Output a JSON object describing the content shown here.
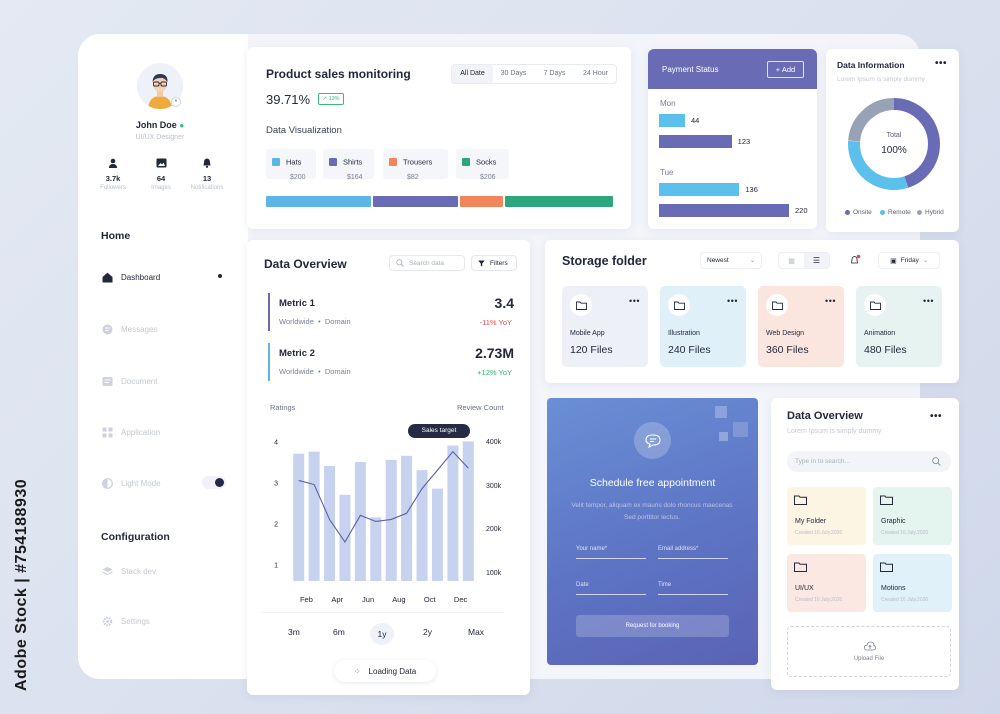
{
  "watermark": "Adobe Stock | #754188930",
  "sidebar": {
    "user": {
      "name": "John Doe",
      "role": "UI/UX Designer"
    },
    "stats": [
      {
        "icon": "person-icon",
        "value": "3.7k",
        "label": "Followers"
      },
      {
        "icon": "image-icon",
        "value": "64",
        "label": "Images"
      },
      {
        "icon": "bell-icon",
        "value": "13",
        "label": "Notifications"
      }
    ],
    "home_heading": "Home",
    "items": [
      {
        "label": "Dashboard",
        "icon": "home-icon",
        "active": true
      },
      {
        "label": "Messages",
        "icon": "message-icon",
        "active": false
      },
      {
        "label": "Document",
        "icon": "document-icon",
        "active": false
      },
      {
        "label": "Application",
        "icon": "grid-icon",
        "active": false
      },
      {
        "label": "Light Mode",
        "icon": "contrast-icon",
        "active": false
      }
    ],
    "config_heading": "Configuration",
    "config_items": [
      {
        "label": "Stack dev",
        "icon": "stack-icon"
      },
      {
        "label": "Settings",
        "icon": "gear-icon"
      }
    ]
  },
  "sales": {
    "title": "Product sales monitoring",
    "tabs": [
      "All Date",
      "30 Days",
      "7 Days",
      "24 Hour"
    ],
    "selected_tab": "All Date",
    "percent": "39.71%",
    "badge": "13%",
    "section": "Data Visualization",
    "items": [
      {
        "name": "Hats",
        "price": "$200",
        "color": "#5bb6e6"
      },
      {
        "name": "Shirts",
        "price": "$164",
        "color": "#6a6bb5"
      },
      {
        "name": "Trousers",
        "price": "$82",
        "color": "#f08659"
      },
      {
        "name": "Socks",
        "price": "$206",
        "color": "#2da67e"
      }
    ]
  },
  "payment": {
    "title": "Payment Status",
    "add_label": "+ Add",
    "days": [
      {
        "day": "Mon",
        "values": [
          44,
          123
        ]
      },
      {
        "day": "Tue",
        "values": [
          136,
          220
        ]
      }
    ],
    "colors": [
      "#5bc0ec",
      "#6a6bb5"
    ]
  },
  "data_info": {
    "title": "Data Information",
    "subtitle": "Lorem Ipsum is simply dummy",
    "center_label": "Total",
    "center_value": "100%",
    "legend": [
      {
        "name": "Onsite",
        "color": "#6a6bb5"
      },
      {
        "name": "Remote",
        "color": "#5bc0ec"
      },
      {
        "name": "Hybrid",
        "color": "#98a2b6"
      }
    ]
  },
  "overview": {
    "title": "Data Overview",
    "search_placeholder": "Search data",
    "filter_label": "Filters",
    "metrics": [
      {
        "name": "Metric 1",
        "sub1": "Worldwide",
        "sub2": "Domain",
        "value": "3.4",
        "delta": "-11% YoY",
        "color": "#6a6bb5",
        "delta_color": "#e04a4a"
      },
      {
        "name": "Metric 2",
        "sub1": "Worldwide",
        "sub2": "Domain",
        "value": "2.73M",
        "delta": "+12% YoY",
        "color": "#5bb6e6",
        "delta_color": "#2bb36e"
      }
    ],
    "left_axis_label": "Ratings",
    "right_axis_label": "Review Count",
    "tooltip": "Sales target",
    "time_ranges": [
      "3m",
      "6m",
      "1y",
      "2y",
      "Max"
    ],
    "selected_range": "1y",
    "loading_label": "Loading Data"
  },
  "chart_data": {
    "type": "bar",
    "x": [
      "Feb",
      "Mar",
      "Apr",
      "May",
      "Jun",
      "Jul",
      "Aug",
      "Sep",
      "Oct",
      "Nov",
      "Dec",
      "Jan"
    ],
    "x_tick_labels": [
      "Feb",
      "Apr",
      "Jun",
      "Aug",
      "Oct",
      "Dec"
    ],
    "series": [
      {
        "values": [
          3.7,
          3.75,
          3.4,
          2.7,
          3.5,
          2.15,
          3.55,
          3.65,
          3.3,
          2.85,
          3.9,
          4.0
        ]
      },
      {
        "values": [
          3.05,
          2.95,
          2.1,
          1.55,
          2.2,
          2.05,
          2.1,
          2.25,
          2.85,
          3.3,
          3.75,
          3.35
        ]
      }
    ],
    "yticks_left": [
      "1",
      "2",
      "3",
      "4"
    ],
    "yticks_right": [
      "100k",
      "200k",
      "300k",
      "400k"
    ],
    "ylim": [
      0.6,
      4.4
    ],
    "colors": [
      "#c7d2ee",
      "#5a5fa8"
    ]
  },
  "storage": {
    "title": "Storage folder",
    "sort": "Newest",
    "day": "Friday",
    "folders": [
      {
        "name": "Mobile App",
        "count": "120 Files",
        "bg": "#eef0f8"
      },
      {
        "name": "Illustration",
        "count": "240 Files",
        "bg": "#dff0f9"
      },
      {
        "name": "Web Design",
        "count": "360 Files",
        "bg": "#fbe6df"
      },
      {
        "name": "Animation",
        "count": "480 Files",
        "bg": "#e6f3f1"
      }
    ]
  },
  "appointment": {
    "title": "Schedule free appointment",
    "desc": "Velit tempor, aliquam ex mauris dolo rhoncus maecenas Sed porttitor lectus.",
    "fields": [
      "Your name*",
      "Email address*",
      "Date",
      "Time"
    ],
    "button": "Request for booking"
  },
  "overview2": {
    "title": "Data Overview",
    "subtitle": "Lorem Ipsum is simply dummy",
    "search_placeholder": "Type in to search...",
    "folders": [
      {
        "name": "My Folder",
        "date": "Created 16 July,2026",
        "bg": "#fdf5e4"
      },
      {
        "name": "Graphic",
        "date": "Created 16 July,2026",
        "bg": "#e4f4ef"
      },
      {
        "name": "UI/UX",
        "date": "Created 16 July,2026",
        "bg": "#fce8e2"
      },
      {
        "name": "Motions",
        "date": "Created 16 July,2026",
        "bg": "#e1f1f9"
      }
    ],
    "upload_label": "Upload File"
  }
}
